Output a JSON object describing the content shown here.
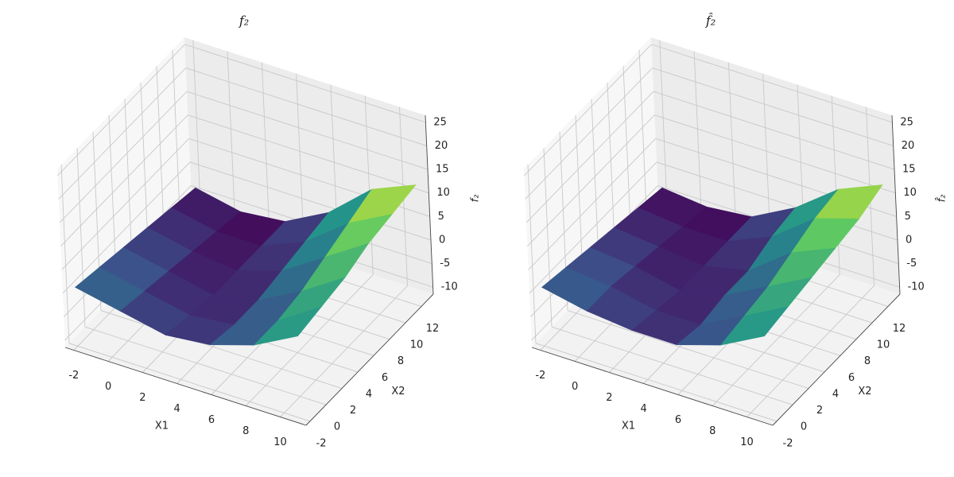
{
  "chart_data": [
    {
      "type": "surface",
      "title": "f₂",
      "xlabel": "X1",
      "ylabel": "X2",
      "zlabel": "f₂",
      "x": [
        -2,
        0.6,
        3.2,
        5.8,
        8.4,
        11
      ],
      "y": [
        -2,
        1,
        4,
        7,
        10,
        13
      ],
      "z": [
        [
          1,
          -1,
          -3,
          -2,
          1,
          6
        ],
        [
          0,
          -2,
          -4,
          -3,
          1,
          7
        ],
        [
          -1,
          -3,
          -5,
          -3,
          2,
          8
        ],
        [
          -2,
          -4,
          -5,
          -2,
          4,
          10
        ],
        [
          -3,
          -5,
          -5,
          -1,
          6,
          11
        ],
        [
          -4,
          -6,
          -5,
          0,
          8,
          12
        ]
      ],
      "xlim": [
        -2.5,
        11.5
      ],
      "ylim": [
        -2.5,
        13.5
      ],
      "zlim": [
        -11.5,
        26.5
      ],
      "xticks": [
        -2,
        0,
        2,
        4,
        6,
        8,
        10
      ],
      "yticks": [
        -2,
        0,
        2,
        4,
        6,
        8,
        10,
        12
      ],
      "zticks": [
        -10,
        -5,
        0,
        5,
        10,
        15,
        20,
        25
      ],
      "colormap": "viridis",
      "grid": true
    },
    {
      "type": "surface",
      "title": "f̂₂",
      "xlabel": "X1",
      "ylabel": "X2",
      "zlabel": "f̂₂",
      "x": [
        -2,
        0.6,
        3.2,
        5.8,
        8.4,
        11
      ],
      "y": [
        -2,
        1,
        4,
        7,
        10,
        13
      ],
      "z": [
        [
          1,
          -1,
          -2,
          -2,
          1,
          6
        ],
        [
          0,
          -1,
          -3,
          -3,
          2,
          7
        ],
        [
          -1,
          -2,
          -4,
          -2,
          3,
          8
        ],
        [
          -2,
          -3,
          -4,
          -2,
          5,
          9
        ],
        [
          -3,
          -4,
          -4,
          0,
          7,
          10
        ],
        [
          -4,
          -5,
          -4,
          1,
          8,
          12
        ]
      ],
      "xlim": [
        -2.5,
        11.5
      ],
      "ylim": [
        -2.5,
        13.5
      ],
      "zlim": [
        -11.5,
        26.5
      ],
      "xticks": [
        -2,
        0,
        2,
        4,
        6,
        8,
        10
      ],
      "yticks": [
        -2,
        0,
        2,
        4,
        6,
        8,
        10,
        12
      ],
      "zticks": [
        -10,
        -5,
        0,
        5,
        10,
        15,
        20,
        25
      ],
      "colormap": "viridis",
      "grid": true
    }
  ]
}
